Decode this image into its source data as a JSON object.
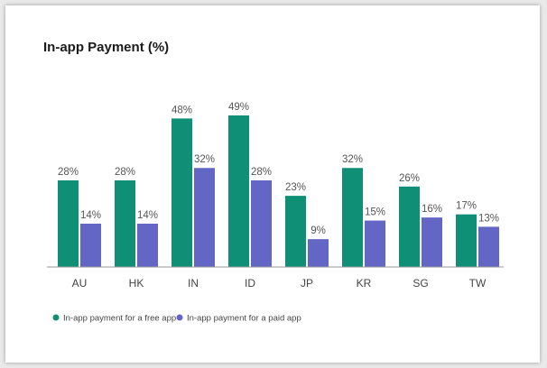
{
  "chart_data": {
    "type": "bar",
    "title": "In-app Payment (%)",
    "categories": [
      "AU",
      "HK",
      "IN",
      "ID",
      "JP",
      "KR",
      "SG",
      "TW"
    ],
    "series": [
      {
        "name": "In-app payment for a free app",
        "color": "#0f8f76",
        "values": [
          28,
          28,
          48,
          49,
          23,
          32,
          26,
          17
        ],
        "labels": [
          "28%",
          "28%",
          "48%",
          "49%",
          "23%",
          "32%",
          "26%",
          "17%"
        ]
      },
      {
        "name": "In-app payment for a paid app",
        "color": "#6366c4",
        "values": [
          14,
          14,
          32,
          28,
          9,
          15,
          16,
          13
        ],
        "labels": [
          "14%",
          "14%",
          "32%",
          "28%",
          "9%",
          "15%",
          "16%",
          "13%"
        ]
      }
    ],
    "ylim": [
      0,
      50
    ],
    "grid": false,
    "legend": "bottom-left",
    "xlabel": "",
    "ylabel": ""
  }
}
